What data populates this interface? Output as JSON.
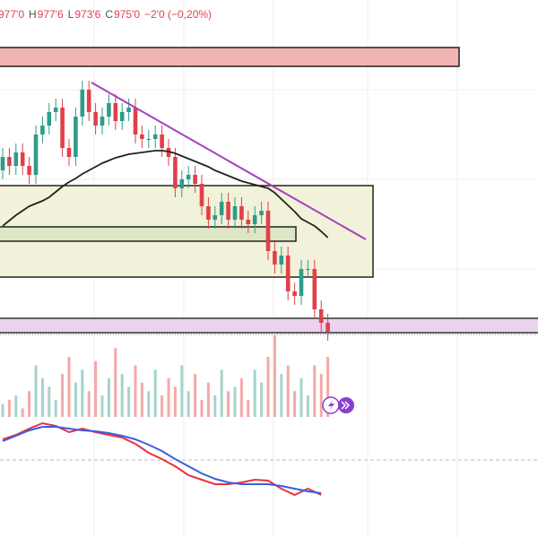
{
  "header": {
    "items": [
      {
        "value": "977'0"
      },
      {
        "label": "H",
        "value": "977'6"
      },
      {
        "label": "L",
        "value": "973'6"
      },
      {
        "label": "C",
        "value": "975'0"
      },
      {
        "value": "−2'0 (−0,20%)"
      }
    ]
  },
  "chart_data": [
    {
      "type": "candlestick",
      "ylim": [
        974,
        993
      ],
      "up_color": "#2e9c88",
      "down_color": "#e0404a",
      "open": [
        983.5,
        984.25,
        983.75,
        984.5,
        983.75,
        983.25,
        985.5,
        986,
        986.75,
        987,
        984.75,
        984.25,
        986.5,
        988,
        986.75,
        986,
        986.5,
        987.25,
        986.25,
        986.75,
        987,
        985.5,
        985.25,
        985.25,
        985.5,
        984.75,
        984.25,
        982.5,
        983,
        983.25,
        982.75,
        981.5,
        980.75,
        981,
        981.75,
        980.75,
        981.5,
        980.75,
        980.5,
        981,
        981.25,
        979,
        978.25,
        978.75,
        976.75,
        976.5,
        978,
        978,
        975.75,
        975
      ],
      "high": [
        984.75,
        984.75,
        985,
        985,
        984.25,
        986,
        986.5,
        987.25,
        987.5,
        987.5,
        985.25,
        987,
        988.5,
        988.5,
        987.25,
        987,
        987.75,
        987.75,
        987.25,
        987.5,
        987.5,
        986,
        985.75,
        986,
        986,
        985.25,
        984.75,
        983.5,
        983.75,
        983.75,
        983.25,
        982,
        981.5,
        982.25,
        982.25,
        982,
        982,
        981.25,
        981.5,
        981.75,
        981.75,
        979.5,
        979.25,
        979.25,
        977.25,
        978.5,
        978.5,
        978.5,
        976.25,
        975.5
      ],
      "low": [
        983,
        983.25,
        983.25,
        983.25,
        982.75,
        982.75,
        985,
        985.5,
        986.25,
        984.25,
        983.75,
        983.75,
        986,
        986.25,
        985.5,
        985.5,
        986,
        985.75,
        985.75,
        986.25,
        985,
        984.75,
        984.75,
        984.75,
        984.25,
        983.75,
        982,
        982,
        982.5,
        982.25,
        981,
        980.25,
        980.25,
        980.5,
        980.25,
        980.25,
        980.25,
        980,
        980,
        980.5,
        978.5,
        977.75,
        977.75,
        976.25,
        976,
        976,
        977.5,
        975.25,
        974.5,
        974
      ],
      "close": [
        984.25,
        983.75,
        984.5,
        983.75,
        983.25,
        985.5,
        986,
        986.75,
        987,
        984.75,
        984.25,
        986.5,
        988,
        986.75,
        986,
        986.5,
        987.25,
        986.25,
        986.75,
        987,
        985.5,
        985.25,
        985.25,
        985.5,
        984.75,
        984.25,
        982.5,
        983,
        983.25,
        982.75,
        981.5,
        980.75,
        981,
        981.75,
        980.75,
        981.5,
        980.75,
        980.5,
        981,
        981.25,
        979,
        978.25,
        978.75,
        976.75,
        976.5,
        978,
        978,
        975.75,
        975,
        974.5
      ],
      "series": [
        {
          "color": "#222222",
          "values": [
            980.4,
            980.7,
            981,
            981.25,
            981.5,
            981.65,
            981.8,
            982,
            982.3,
            982.6,
            982.85,
            983.05,
            983.3,
            983.5,
            983.7,
            983.9,
            984.05,
            984.2,
            984.3,
            984.4,
            984.45,
            984.5,
            984.55,
            984.6,
            984.6,
            984.55,
            984.45,
            984.3,
            984.15,
            984,
            983.85,
            983.7,
            983.5,
            983.35,
            983.2,
            983.05,
            982.9,
            982.8,
            982.7,
            982.6,
            982.5,
            982.25,
            981.9,
            981.55,
            981.2,
            980.8,
            980.6,
            980.4,
            980.1,
            979.75
          ]
        }
      ]
    },
    {
      "type": "bar",
      "ylim": [
        0,
        120
      ],
      "up_color": "#a6d4cc",
      "down_color": "#f3a9a9",
      "values": [
        15,
        20,
        25,
        10,
        30,
        60,
        45,
        35,
        20,
        50,
        70,
        40,
        55,
        30,
        65,
        25,
        45,
        80,
        50,
        35,
        60,
        40,
        30,
        55,
        25,
        45,
        35,
        60,
        30,
        50,
        20,
        40,
        25,
        55,
        30,
        35,
        45,
        20,
        55,
        40,
        70,
        95,
        50,
        60,
        30,
        45,
        25,
        60,
        50,
        70
      ]
    },
    {
      "type": "line",
      "ylim": [
        -1.74,
        0.96
      ],
      "x": [
        0,
        2,
        4,
        6,
        8,
        10,
        12,
        14,
        16,
        18,
        20,
        22,
        24,
        26,
        28,
        30,
        32,
        34,
        36,
        38,
        40,
        42,
        44,
        46,
        48
      ],
      "series": [
        {
          "color": "#e8323c",
          "values": [
            0.46,
            0.56,
            0.7,
            0.82,
            0.76,
            0.62,
            0.7,
            0.62,
            0.56,
            0.5,
            0.36,
            0.16,
            0.02,
            -0.14,
            -0.34,
            -0.44,
            -0.54,
            -0.54,
            -0.5,
            -0.44,
            -0.46,
            -0.64,
            -0.78,
            -0.64,
            -0.78
          ]
        },
        {
          "color": "#3a5fe0",
          "values": [
            0.42,
            0.54,
            0.66,
            0.74,
            0.74,
            0.7,
            0.66,
            0.64,
            0.6,
            0.54,
            0.46,
            0.34,
            0.2,
            0.02,
            -0.14,
            -0.3,
            -0.42,
            -0.5,
            -0.54,
            -0.54,
            -0.54,
            -0.58,
            -0.64,
            -0.7,
            -0.74
          ]
        }
      ]
    }
  ]
}
